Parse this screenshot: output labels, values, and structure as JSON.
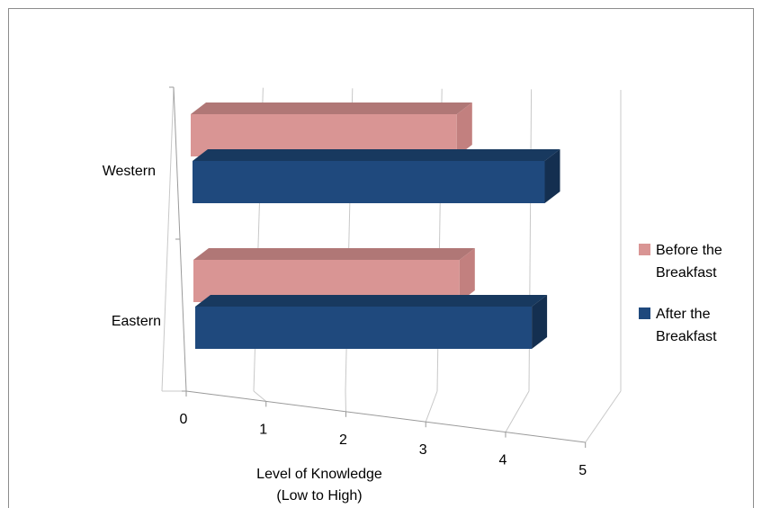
{
  "chart_data": {
    "type": "bar",
    "orientation": "horizontal",
    "three_d": true,
    "categories": [
      "Western",
      "Eastern"
    ],
    "series": [
      {
        "name": "Before the Breakfast",
        "values": [
          3.4,
          3.4
        ],
        "color": "#d99594"
      },
      {
        "name": "After the Breakfast",
        "values": [
          4.5,
          4.3
        ],
        "color": "#1f497d"
      }
    ],
    "xlabel_lines": [
      "Level of Knowledge",
      "(Low to High)"
    ],
    "xticks": [
      "0",
      "1",
      "2",
      "3",
      "4",
      "5"
    ],
    "xlim": [
      0,
      5
    ],
    "ylabel": "",
    "grid": true,
    "legend_position": "right",
    "legend_lines": [
      [
        "Before the",
        "Breakfast"
      ],
      [
        "After the",
        "Breakfast"
      ]
    ]
  }
}
